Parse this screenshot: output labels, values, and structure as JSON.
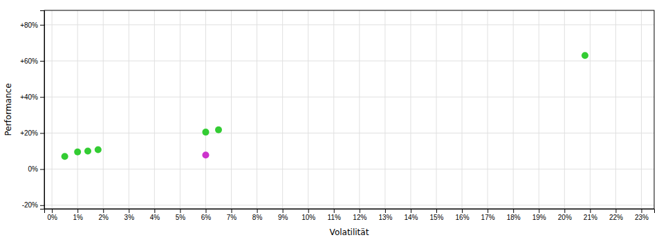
{
  "chart_data": {
    "type": "scatter",
    "xlabel": "Volatilität",
    "ylabel": "Performance",
    "xlim": [
      -0.003,
      0.235
    ],
    "ylim": [
      -0.22,
      0.88
    ],
    "xticks": [
      {
        "value": 0.0,
        "label": "0%"
      },
      {
        "value": 0.01,
        "label": "1%"
      },
      {
        "value": 0.02,
        "label": "2%"
      },
      {
        "value": 0.03,
        "label": "3%"
      },
      {
        "value": 0.04,
        "label": "4%"
      },
      {
        "value": 0.05,
        "label": "5%"
      },
      {
        "value": 0.06,
        "label": "6%"
      },
      {
        "value": 0.07,
        "label": "7%"
      },
      {
        "value": 0.08,
        "label": "8%"
      },
      {
        "value": 0.09,
        "label": "9%"
      },
      {
        "value": 0.1,
        "label": "10%"
      },
      {
        "value": 0.11,
        "label": "11%"
      },
      {
        "value": 0.12,
        "label": "12%"
      },
      {
        "value": 0.13,
        "label": "13%"
      },
      {
        "value": 0.14,
        "label": "14%"
      },
      {
        "value": 0.15,
        "label": "15%"
      },
      {
        "value": 0.16,
        "label": "16%"
      },
      {
        "value": 0.17,
        "label": "17%"
      },
      {
        "value": 0.18,
        "label": "18%"
      },
      {
        "value": 0.19,
        "label": "19%"
      },
      {
        "value": 0.2,
        "label": "20%"
      },
      {
        "value": 0.21,
        "label": "21%"
      },
      {
        "value": 0.22,
        "label": "22%"
      },
      {
        "value": 0.23,
        "label": "23%"
      }
    ],
    "yticks": [
      {
        "value": -0.2,
        "label": "-20%"
      },
      {
        "value": 0.0,
        "label": "0%"
      },
      {
        "value": 0.2,
        "label": "+20%"
      },
      {
        "value": 0.4,
        "label": "+40%"
      },
      {
        "value": 0.6,
        "label": "+60%"
      },
      {
        "value": 0.8,
        "label": "+80%"
      }
    ],
    "grid": true,
    "series": [
      {
        "color": "#33cc33",
        "x": [
          0.005,
          0.01,
          0.014,
          0.018,
          0.06,
          0.065,
          0.208
        ],
        "values": [
          0.07,
          0.095,
          0.1,
          0.108,
          0.205,
          0.218,
          0.63
        ]
      },
      {
        "color": "#cc33cc",
        "x": [
          0.06
        ],
        "values": [
          0.078
        ]
      }
    ]
  }
}
